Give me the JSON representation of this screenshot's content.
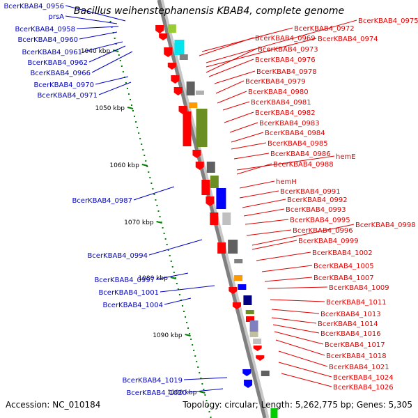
{
  "title": "Bacillus weihenstephanensis KBAB4, complete genome",
  "footer": {
    "accession": "Accession: NC_010184",
    "summary": "Topology: circular; Length: 5,262,775 bp; Genes: 5,305"
  },
  "colors": {
    "backbone": "#808080",
    "left_labels": "#0000c0",
    "right_labels": "#e00000",
    "ticks": "#008000",
    "forward_gene": "#ff0000",
    "reverse_gene": "#0033ff"
  },
  "ticks": [
    {
      "label": "1040 kbp"
    },
    {
      "label": "1050 kbp"
    },
    {
      "label": "1060 kbp"
    },
    {
      "label": "1070 kbp"
    },
    {
      "label": "1080 kbp"
    },
    {
      "label": "1090 kbp"
    },
    {
      "label": "1100 kbp"
    }
  ],
  "left_labels": [
    "BcerKBAB4_0956",
    "prsA",
    "BcerKBAB4_0958",
    "BcerKBAB4_0960",
    "BcerKBAB4_0961",
    "BcerKBAB4_0962",
    "BcerKBAB4_0966",
    "BcerKBAB4_0970",
    "BcerKBAB4_0971",
    "BcerKBAB4_0987",
    "BcerKBAB4_0994",
    "BcerKBAB4_0997",
    "BcerKBAB4_1001",
    "BcerKBAB4_1004",
    "BcerKBAB4_1019",
    "BcerKBAB4_1020"
  ],
  "right_labels": [
    "BcerKBAB4_0975",
    "BcerKBAB4_0972",
    "BcerKBAB4_0969",
    "BcerKBAB4_0974",
    "BcerKBAB4_0973",
    "BcerKBAB4_0976",
    "BcerKBAB4_0978",
    "BcerKBAB4_0979",
    "BcerKBAB4_0980",
    "BcerKBAB4_0981",
    "BcerKBAB4_0982",
    "BcerKBAB4_0983",
    "BcerKBAB4_0984",
    "BcerKBAB4_0985",
    "BcerKBAB4_0986",
    "hemE",
    "BcerKBAB4_0988",
    "hemH",
    "BcerKBAB4_0991",
    "BcerKBAB4_0992",
    "BcerKBAB4_0993",
    "BcerKBAB4_0995",
    "BcerKBAB4_0998",
    "BcerKBAB4_0996",
    "BcerKBAB4_0999",
    "BcerKBAB4_1002",
    "BcerKBAB4_1005",
    "BcerKBAB4_1007",
    "BcerKBAB4_1009",
    "BcerKBAB4_1011",
    "BcerKBAB4_1013",
    "BcerKBAB4_1014",
    "BcerKBAB4_1016",
    "BcerKBAB4_1017",
    "BcerKBAB4_1018",
    "BcerKBAB4_1021",
    "BcerKBAB4_1024",
    "BcerKBAB4_1026"
  ]
}
